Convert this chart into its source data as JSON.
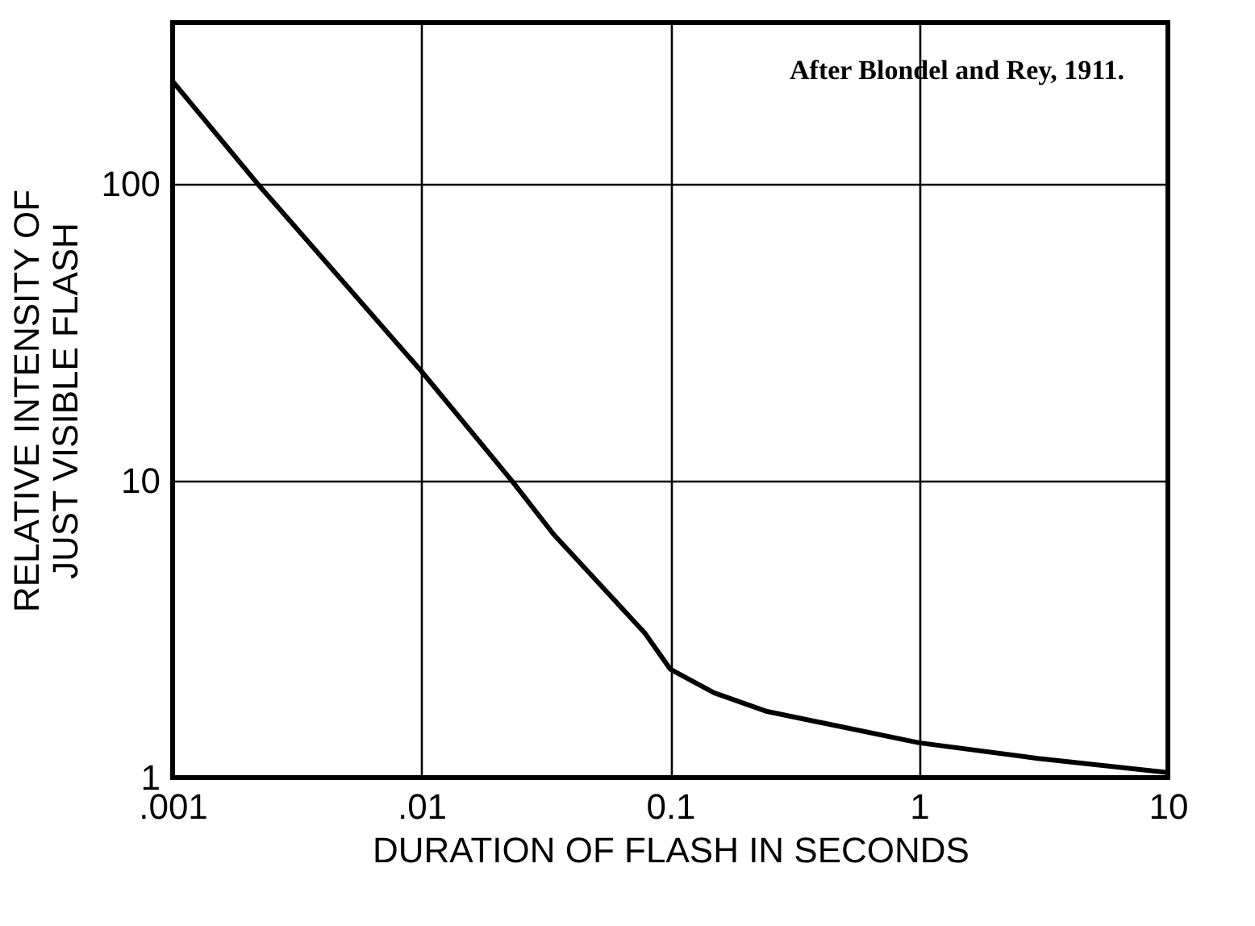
{
  "chart_data": {
    "type": "line",
    "xlabel": "DURATION OF FLASH IN SECONDS",
    "ylabel": "RELATIVE INTENSITY OF\nJUST VISIBLE FLASH",
    "annotations": [
      "After Blondel and Rey, 1911."
    ],
    "x": [
      0.001,
      0.0022,
      0.01,
      0.0231,
      0.034,
      0.079,
      0.1,
      0.15,
      0.245,
      1,
      3,
      10
    ],
    "series": [
      {
        "color": "#000000",
        "values": [
          222,
          100,
          23.4,
          10,
          6.6,
          3.07,
          2.32,
          1.93,
          1.67,
          1.31,
          1.16,
          1.04
        ]
      }
    ],
    "log": "xy",
    "xlim": [
      0.001,
      10
    ],
    "ylim": [
      1,
      350
    ],
    "xticks": [
      {
        "value": 0.001,
        "label": ".001"
      },
      {
        "value": 0.01,
        "label": ".01"
      },
      {
        "value": 0.1,
        "label": "0.1"
      },
      1,
      10
    ],
    "yticks": [
      1,
      10,
      100
    ],
    "grid": true,
    "marker": "none",
    "line_style": "solid"
  }
}
